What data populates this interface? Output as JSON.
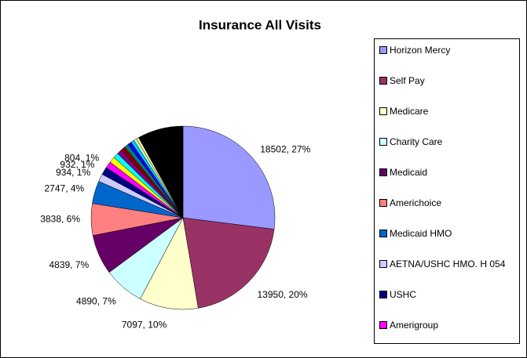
{
  "chart_data": {
    "type": "pie",
    "title": "Insurance All Visits",
    "categories": [
      "Horizon Mercy",
      "Self Pay",
      "Medicare",
      "Charity Care",
      "Medicaid",
      "Americhoice",
      "Medicaid HMO",
      "AETNA/USHC HMO. H 054",
      "USHC",
      "Amerigroup",
      null,
      null,
      null,
      null,
      null,
      null,
      null,
      null,
      null,
      null
    ],
    "values": [
      18502,
      13950,
      7097,
      4890,
      4839,
      3838,
      2747,
      934,
      932,
      804,
      700,
      650,
      600,
      550,
      500,
      450,
      400,
      350,
      300,
      5500
    ],
    "value_labels": [
      "18502, 27%",
      "13950, 20%",
      "7097, 10%",
      "4890, 7%",
      "4839, 7%",
      "3838, 6%",
      "2747, 4%",
      "934, 1%",
      "932, 1%",
      "804, 1%",
      null,
      null,
      null,
      null,
      null,
      null,
      null,
      null,
      null,
      null
    ],
    "colors": [
      "#9999FF",
      "#993366",
      "#FFFFCC",
      "#CCFFFF",
      "#660066",
      "#FF8080",
      "#0066CC",
      "#CCCCFF",
      "#000080",
      "#FF00FF",
      "#FFFF00",
      "#00FFFF",
      "#800080",
      "#800000",
      "#008080",
      "#0000FF",
      "#00CCFF",
      "#CCFFCC",
      "#FFFF99",
      "#000000"
    ],
    "legend": "right"
  }
}
